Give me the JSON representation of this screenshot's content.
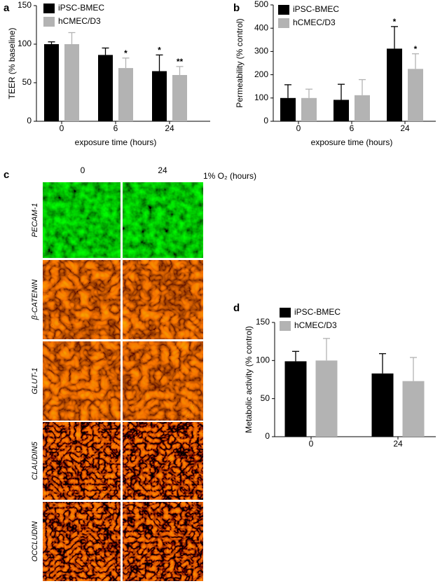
{
  "chart_data": [
    {
      "type": "bar",
      "panel": "a",
      "ylabel": "TEER (% baseline)",
      "xlabel": "exposure time (hours)",
      "categories": [
        "0",
        "6",
        "24"
      ],
      "series": [
        {
          "name": "iPSC-BMEC",
          "color": "#000000",
          "values": [
            100,
            86,
            65
          ],
          "errors": [
            3,
            9,
            21
          ],
          "stars": [
            null,
            null,
            "*"
          ]
        },
        {
          "name": "hCMEC/D3",
          "color": "#b3b3b3",
          "values": [
            100,
            69,
            60
          ],
          "errors": [
            15,
            13,
            11
          ],
          "stars": [
            null,
            "*",
            "**"
          ]
        }
      ],
      "ylim": [
        0,
        150
      ],
      "yticks": [
        0,
        50,
        100,
        150
      ]
    },
    {
      "type": "bar",
      "panel": "b",
      "ylabel": "Permeability (% control)",
      "xlabel": "exposure time (hours)",
      "categories": [
        "0",
        "6",
        "24"
      ],
      "series": [
        {
          "name": "iPSC-BMEC",
          "color": "#000000",
          "values": [
            100,
            92,
            312
          ],
          "errors": [
            57,
            67,
            95
          ],
          "stars": [
            null,
            null,
            "*"
          ]
        },
        {
          "name": "hCMEC/D3",
          "color": "#b3b3b3",
          "values": [
            100,
            112,
            225
          ],
          "errors": [
            38,
            67,
            65
          ],
          "stars": [
            null,
            null,
            "*"
          ]
        }
      ],
      "ylim": [
        0,
        500
      ],
      "yticks": [
        0,
        100,
        200,
        300,
        400,
        500
      ]
    },
    {
      "type": "bar",
      "panel": "d",
      "ylabel": "Metabolic activity (% control)",
      "categories": [
        "0",
        "24"
      ],
      "series": [
        {
          "name": "iPSC-BMEC",
          "color": "#000000",
          "values": [
            99,
            83
          ],
          "errors": [
            13,
            26
          ],
          "stars": [
            null,
            null
          ]
        },
        {
          "name": "hCMEC/D3",
          "color": "#b3b3b3",
          "values": [
            100,
            73
          ],
          "errors": [
            29,
            31
          ],
          "stars": [
            null,
            null
          ]
        }
      ],
      "ylim": [
        0,
        150
      ],
      "yticks": [
        0,
        50,
        100,
        150
      ]
    }
  ],
  "image_panel": {
    "panel": "c",
    "columns": [
      "0",
      "24"
    ],
    "condition": "1% O₂ (hours)",
    "rows": [
      "PECAM-1",
      "β-CATENIN",
      "GLUT-1",
      "CLAUDIN5",
      "OCCLUDIN"
    ]
  }
}
